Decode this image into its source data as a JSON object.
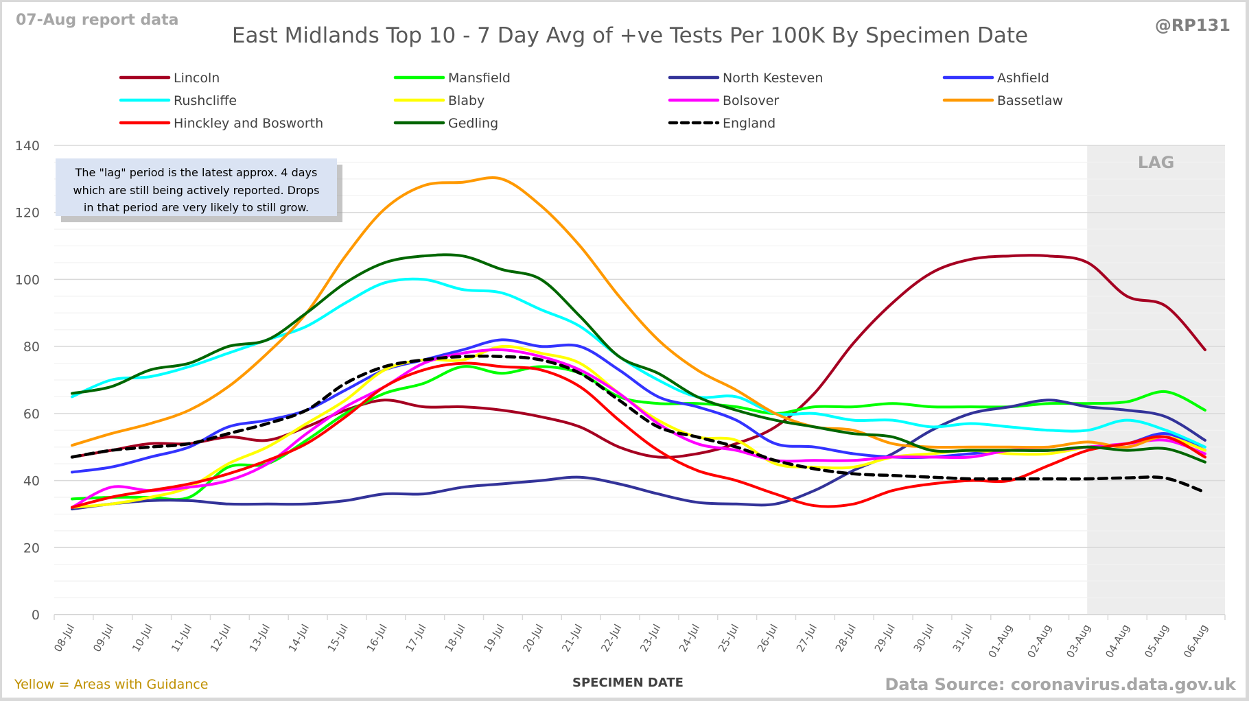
{
  "header": {
    "report_date": "07-Aug report data",
    "handle": "@RP131"
  },
  "footer": {
    "guidance_note": "Yellow = Areas with Guidance",
    "source": "Data Source: coronavirus.data.gov.uk"
  },
  "annotation": {
    "lines": [
      "The \"lag\" period is the latest approx. 4 days",
      "which are still being actively reported.  Drops",
      "in that period are very likely to still grow."
    ],
    "lag_label": "LAG"
  },
  "chart_data": {
    "type": "line",
    "title": "East Midlands Top 10 - 7 Day Avg of +ve Tests Per 100K By Specimen Date",
    "xlabel": "SPECIMEN DATE",
    "ylabel": "",
    "ylim": [
      0,
      140
    ],
    "yticks": [
      0,
      20,
      40,
      60,
      80,
      100,
      120,
      140
    ],
    "grid": true,
    "legend_position": "top",
    "lag_region": [
      "03-Aug",
      "06-Aug"
    ],
    "x": [
      "08-Jul",
      "09-Jul",
      "10-Jul",
      "11-Jul",
      "12-Jul",
      "13-Jul",
      "14-Jul",
      "15-Jul",
      "16-Jul",
      "17-Jul",
      "18-Jul",
      "19-Jul",
      "20-Jul",
      "21-Jul",
      "22-Jul",
      "23-Jul",
      "24-Jul",
      "25-Jul",
      "26-Jul",
      "27-Jul",
      "28-Jul",
      "29-Jul",
      "30-Jul",
      "31-Jul",
      "01-Aug",
      "02-Aug",
      "03-Aug",
      "04-Aug",
      "05-Aug",
      "06-Aug"
    ],
    "series": [
      {
        "name": "Lincoln",
        "color": "#a50021",
        "dashed": false,
        "values": [
          47,
          49,
          51,
          51,
          53,
          52,
          56,
          61,
          64,
          62,
          62,
          61,
          59,
          56,
          50,
          47,
          48,
          51,
          56,
          66,
          81,
          93,
          102,
          106,
          107,
          107,
          105,
          95,
          92,
          79
        ]
      },
      {
        "name": "Mansfield",
        "color": "#00ff00",
        "dashed": false,
        "values": [
          34.5,
          35,
          35,
          35,
          44,
          45,
          52,
          60,
          66,
          69,
          74,
          72,
          74,
          72,
          65,
          63,
          63,
          62,
          60,
          62,
          62,
          63,
          62,
          62,
          62,
          63,
          63,
          63.5,
          66.5,
          61
        ]
      },
      {
        "name": "North Kesteven",
        "color": "#333399",
        "dashed": false,
        "values": [
          31.5,
          33,
          34,
          34,
          33,
          33,
          33,
          34,
          36,
          36,
          38,
          39,
          40,
          41,
          39,
          36,
          33.5,
          33,
          33,
          37,
          43,
          48,
          55,
          60,
          62,
          64,
          62,
          61,
          59,
          52
        ]
      },
      {
        "name": "Ashfield",
        "color": "#3333ff",
        "dashed": false,
        "values": [
          42.5,
          44,
          47,
          50,
          56,
          58,
          61,
          67,
          73,
          76,
          79,
          82,
          80,
          80,
          73,
          65,
          62,
          58,
          51,
          50,
          48,
          47,
          47,
          48,
          49,
          49,
          50,
          51,
          54,
          49
        ]
      },
      {
        "name": "Rushcliffe",
        "color": "#00ffff",
        "dashed": false,
        "values": [
          65,
          70,
          71,
          74,
          78,
          82,
          86,
          93,
          99,
          100,
          97,
          96,
          91,
          86,
          77,
          70,
          65,
          65,
          60,
          60,
          58,
          58,
          56,
          57,
          56,
          55,
          55,
          58,
          55,
          50
        ]
      },
      {
        "name": "Blaby",
        "color": "#ffff00",
        "dashed": false,
        "values": [
          32,
          33,
          35,
          38,
          45,
          50,
          57,
          64,
          73,
          76,
          76,
          80,
          78,
          75,
          66,
          58,
          53,
          52,
          45,
          44,
          44,
          47,
          48,
          49,
          48,
          48,
          50,
          51,
          53,
          49
        ]
      },
      {
        "name": "Bolsover",
        "color": "#ff00ff",
        "dashed": false,
        "values": [
          32,
          38,
          37,
          38,
          40,
          45,
          54,
          62,
          68,
          75,
          78,
          79,
          77,
          73,
          66,
          57,
          51,
          49,
          46,
          46,
          46,
          47,
          47,
          47,
          49,
          49,
          50,
          51,
          52,
          48
        ]
      },
      {
        "name": "Bassetlaw",
        "color": "#ff9900",
        "dashed": false,
        "values": [
          50.5,
          54,
          57,
          61,
          68,
          78,
          90,
          107,
          121,
          128,
          129,
          130,
          122,
          110,
          95,
          82,
          73,
          67,
          60,
          56,
          55,
          51,
          50,
          50,
          50,
          50,
          51.5,
          50,
          53,
          47
        ]
      },
      {
        "name": "Hinckley and Bosworth",
        "color": "#ff0000",
        "dashed": false,
        "values": [
          32,
          35,
          37,
          39,
          42,
          46,
          51,
          59,
          68,
          73,
          75,
          74,
          73,
          68,
          58,
          49,
          43,
          40,
          36,
          32.5,
          33,
          37,
          39,
          40,
          40,
          44.5,
          49,
          51,
          53,
          47
        ]
      },
      {
        "name": "Gedling",
        "color": "#006600",
        "dashed": false,
        "values": [
          66,
          68,
          73,
          75,
          80,
          82,
          90,
          99,
          105,
          107,
          107,
          103,
          100,
          89,
          77,
          72,
          65,
          61,
          58,
          56,
          54,
          53,
          49,
          49,
          49,
          49,
          50,
          49,
          49.5,
          45.5
        ]
      },
      {
        "name": "England",
        "color": "#000000",
        "dashed": true,
        "values": [
          47,
          49,
          50,
          51,
          54,
          57,
          61,
          69,
          74,
          76,
          77,
          77,
          76,
          72,
          64,
          56,
          53,
          50,
          46,
          43.5,
          42,
          41.5,
          41,
          40.5,
          40.5,
          40.5,
          40.5,
          40.8,
          40.7,
          36.5
        ]
      }
    ]
  }
}
